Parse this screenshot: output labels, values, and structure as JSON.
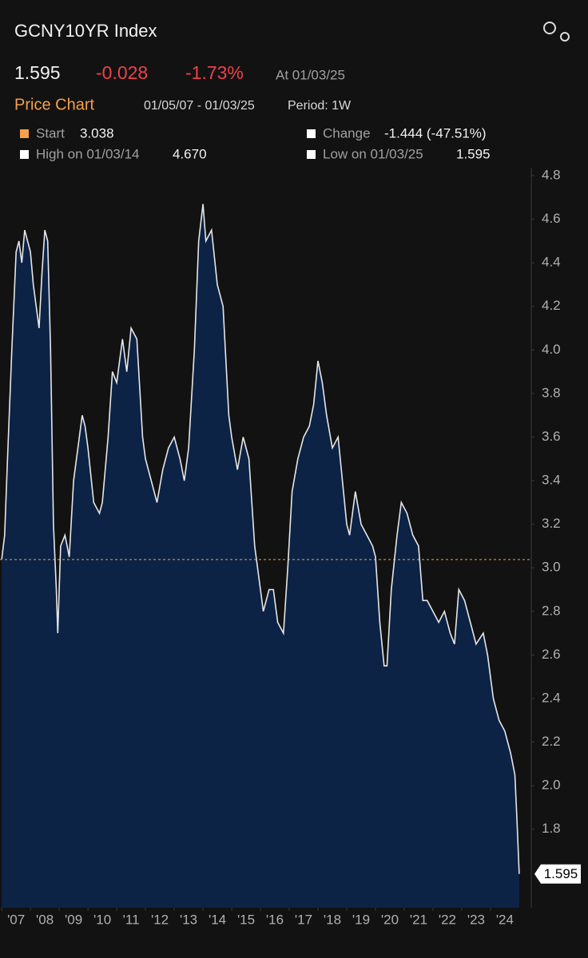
{
  "header": {
    "title": "GCNY10YR Index",
    "price": "1.595",
    "change": "-0.028",
    "change_pct": "-1.73%",
    "as_of": "At 01/03/25",
    "section": "Price Chart",
    "range": "01/05/07 - 01/03/25",
    "period": "Period: 1W"
  },
  "stats": {
    "start": {
      "label": "Start",
      "value": 3.038
    },
    "change": {
      "label": "Change",
      "value": "-1.444 (-47.51%)"
    },
    "high": {
      "label": "High on 01/03/14",
      "value": "4.670"
    },
    "low": {
      "label": "Low on 01/03/25",
      "value": 1.595
    }
  },
  "chart_data": {
    "type": "area",
    "color": "#e6e6e6",
    "fill": "#0c2346",
    "x": [
      2007.0,
      2007.1,
      2007.2,
      2007.35,
      2007.5,
      2007.6,
      2007.7,
      2007.8,
      2007.9,
      2008.0,
      2008.1,
      2008.2,
      2008.3,
      2008.4,
      2008.5,
      2008.6,
      2008.7,
      2008.8,
      2008.9,
      2008.95,
      2009.05,
      2009.2,
      2009.35,
      2009.5,
      2009.7,
      2009.8,
      2009.9,
      2010.0,
      2010.2,
      2010.4,
      2010.5,
      2010.7,
      2010.85,
      2011.0,
      2011.2,
      2011.35,
      2011.5,
      2011.7,
      2011.9,
      2012.0,
      2012.2,
      2012.4,
      2012.6,
      2012.8,
      2013.0,
      2013.2,
      2013.35,
      2013.5,
      2013.7,
      2013.85,
      2014.0,
      2014.1,
      2014.3,
      2014.5,
      2014.7,
      2014.9,
      2015.0,
      2015.2,
      2015.4,
      2015.6,
      2015.8,
      2015.95,
      2016.1,
      2016.3,
      2016.45,
      2016.6,
      2016.8,
      2016.95,
      2017.1,
      2017.3,
      2017.5,
      2017.7,
      2017.85,
      2018.0,
      2018.15,
      2018.3,
      2018.5,
      2018.7,
      2018.85,
      2019.0,
      2019.1,
      2019.3,
      2019.5,
      2019.7,
      2019.9,
      2020.0,
      2020.15,
      2020.3,
      2020.4,
      2020.55,
      2020.75,
      2020.9,
      2021.1,
      2021.3,
      2021.5,
      2021.65,
      2021.8,
      2022.0,
      2022.2,
      2022.4,
      2022.6,
      2022.75,
      2022.9,
      2023.1,
      2023.3,
      2023.5,
      2023.75,
      2023.9,
      2024.1,
      2024.3,
      2024.5,
      2024.7,
      2024.85,
      2024.92,
      2025.0
    ],
    "values": [
      3.04,
      3.15,
      3.5,
      4.0,
      4.45,
      4.5,
      4.4,
      4.55,
      4.5,
      4.45,
      4.3,
      4.2,
      4.1,
      4.35,
      4.55,
      4.5,
      4.0,
      3.2,
      2.9,
      2.7,
      3.1,
      3.15,
      3.05,
      3.4,
      3.6,
      3.7,
      3.65,
      3.55,
      3.3,
      3.25,
      3.3,
      3.6,
      3.9,
      3.85,
      4.05,
      3.9,
      4.1,
      4.05,
      3.6,
      3.5,
      3.4,
      3.3,
      3.45,
      3.55,
      3.6,
      3.5,
      3.4,
      3.55,
      4.0,
      4.5,
      4.67,
      4.5,
      4.55,
      4.3,
      4.2,
      3.7,
      3.6,
      3.45,
      3.6,
      3.5,
      3.1,
      2.95,
      2.8,
      2.9,
      2.9,
      2.75,
      2.7,
      3.0,
      3.35,
      3.5,
      3.6,
      3.65,
      3.75,
      3.95,
      3.85,
      3.7,
      3.55,
      3.6,
      3.4,
      3.2,
      3.15,
      3.35,
      3.2,
      3.15,
      3.1,
      3.05,
      2.75,
      2.55,
      2.55,
      2.9,
      3.15,
      3.3,
      3.25,
      3.15,
      3.1,
      2.85,
      2.85,
      2.8,
      2.75,
      2.8,
      2.7,
      2.65,
      2.9,
      2.85,
      2.75,
      2.65,
      2.7,
      2.6,
      2.4,
      2.3,
      2.25,
      2.15,
      2.05,
      1.85,
      1.595
    ],
    "xlim": [
      2006.94,
      2025.42
    ],
    "ylim": [
      1.44,
      4.8
    ],
    "xticks": [
      {
        "value": 2007,
        "label": "'07"
      },
      {
        "value": 2008,
        "label": "'08"
      },
      {
        "value": 2009,
        "label": "'09"
      },
      {
        "value": 2010,
        "label": "'10"
      },
      {
        "value": 2011,
        "label": "'11"
      },
      {
        "value": 2012,
        "label": "'12"
      },
      {
        "value": 2013,
        "label": "'13"
      },
      {
        "value": 2014,
        "label": "'14"
      },
      {
        "value": 2015,
        "label": "'15"
      },
      {
        "value": 2016,
        "label": "'16"
      },
      {
        "value": 2017,
        "label": "'17"
      },
      {
        "value": 2018,
        "label": "'18"
      },
      {
        "value": 2019,
        "label": "'19"
      },
      {
        "value": 2020,
        "label": "'20"
      },
      {
        "value": 2021,
        "label": "'21"
      },
      {
        "value": 2022,
        "label": "'22"
      },
      {
        "value": 2023,
        "label": "'23"
      },
      {
        "value": 2024,
        "label": "'24"
      }
    ],
    "yticks": [
      1.8,
      {
        "value": 2,
        "label": "2.0"
      },
      2.2,
      2.4,
      2.6,
      2.8,
      {
        "value": 3,
        "label": "3.0"
      },
      3.2,
      3.4,
      3.6,
      3.8,
      {
        "value": 4,
        "label": "4.0"
      },
      4.2,
      4.4,
      4.6,
      4.8
    ],
    "grid": false
  }
}
